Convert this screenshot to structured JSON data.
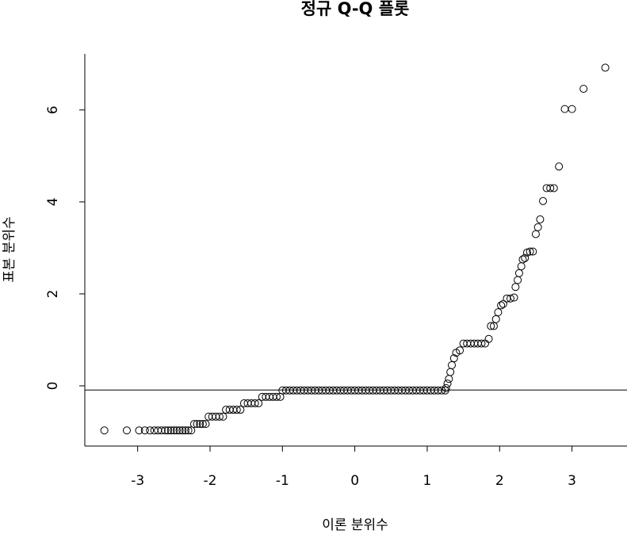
{
  "chart_data": {
    "type": "scatter",
    "title": "정규 Q-Q 플롯",
    "x_label": "이론 분위수",
    "y_label": "표본 분위수",
    "xlim": [
      -3.73,
      3.76
    ],
    "ylim": [
      -1.31,
      7.22
    ],
    "xticks": [
      -3,
      -2,
      -1,
      0,
      1,
      2,
      3
    ],
    "yticks": [
      0,
      2,
      4,
      6
    ],
    "hline": -0.09,
    "color": "#000000",
    "x": [
      -3.46,
      -3.15,
      -2.98,
      -2.9,
      -2.83,
      -2.77,
      -2.72,
      -2.67,
      -2.62,
      -2.58,
      -2.54,
      -2.5,
      -2.46,
      -2.42,
      -2.38,
      -2.34,
      -2.3,
      -2.26,
      -2.22,
      -2.18,
      -2.14,
      -2.1,
      -2.06,
      -2.02,
      -1.97,
      -1.92,
      -1.87,
      -1.82,
      -1.78,
      -1.73,
      -1.68,
      -1.63,
      -1.58,
      -1.53,
      -1.48,
      -1.43,
      -1.38,
      -1.33,
      -1.28,
      -1.23,
      -1.18,
      -1.13,
      -1.08,
      -1.03,
      -1.0,
      -0.95,
      -0.9,
      -0.85,
      -0.8,
      -0.75,
      -0.7,
      -0.65,
      -0.6,
      -0.55,
      -0.5,
      -0.45,
      -0.4,
      -0.35,
      -0.3,
      -0.25,
      -0.2,
      -0.15,
      -0.1,
      -0.05,
      0,
      0.05,
      0.1,
      0.15,
      0.2,
      0.25,
      0.3,
      0.35,
      0.4,
      0.45,
      0.5,
      0.55,
      0.6,
      0.65,
      0.7,
      0.75,
      0.8,
      0.85,
      0.9,
      0.95,
      1.0,
      1.05,
      1.1,
      1.15,
      1.2,
      1.25,
      1.26,
      1.28,
      1.3,
      1.32,
      1.34,
      1.37,
      1.4,
      1.45,
      1.5,
      1.55,
      1.6,
      1.65,
      1.7,
      1.75,
      1.8,
      1.85,
      1.88,
      1.92,
      1.95,
      1.98,
      2.02,
      2.05,
      2.1,
      2.15,
      2.2,
      2.22,
      2.25,
      2.27,
      2.3,
      2.32,
      2.35,
      2.38,
      2.42,
      2.46,
      2.5,
      2.53,
      2.56,
      2.6,
      2.65,
      2.7,
      2.75,
      2.82,
      2.9,
      3.0,
      3.16,
      3.46
    ],
    "y": [
      -0.97,
      -0.97,
      -0.97,
      -0.97,
      -0.97,
      -0.97,
      -0.97,
      -0.97,
      -0.97,
      -0.97,
      -0.97,
      -0.97,
      -0.97,
      -0.97,
      -0.97,
      -0.97,
      -0.97,
      -0.97,
      -0.83,
      -0.83,
      -0.83,
      -0.83,
      -0.83,
      -0.67,
      -0.67,
      -0.67,
      -0.67,
      -0.67,
      -0.52,
      -0.52,
      -0.52,
      -0.52,
      -0.52,
      -0.38,
      -0.38,
      -0.38,
      -0.38,
      -0.38,
      -0.24,
      -0.24,
      -0.24,
      -0.24,
      -0.24,
      -0.24,
      -0.1,
      -0.1,
      -0.1,
      -0.1,
      -0.1,
      -0.1,
      -0.1,
      -0.1,
      -0.1,
      -0.1,
      -0.1,
      -0.1,
      -0.1,
      -0.1,
      -0.1,
      -0.1,
      -0.1,
      -0.1,
      -0.1,
      -0.1,
      -0.1,
      -0.1,
      -0.1,
      -0.1,
      -0.1,
      -0.1,
      -0.1,
      -0.1,
      -0.1,
      -0.1,
      -0.1,
      -0.1,
      -0.1,
      -0.1,
      -0.1,
      -0.1,
      -0.1,
      -0.1,
      -0.1,
      -0.1,
      -0.1,
      -0.1,
      -0.1,
      -0.1,
      -0.1,
      -0.1,
      -0.05,
      0.05,
      0.15,
      0.3,
      0.45,
      0.6,
      0.72,
      0.77,
      0.92,
      0.92,
      0.92,
      0.92,
      0.92,
      0.92,
      0.92,
      1.02,
      1.3,
      1.3,
      1.45,
      1.6,
      1.75,
      1.78,
      1.9,
      1.9,
      1.92,
      2.15,
      2.3,
      2.45,
      2.6,
      2.75,
      2.78,
      2.9,
      2.92,
      2.92,
      3.3,
      3.45,
      3.62,
      4.02,
      4.3,
      4.3,
      4.3,
      4.77,
      6.02,
      6.02,
      6.46,
      6.92
    ]
  }
}
